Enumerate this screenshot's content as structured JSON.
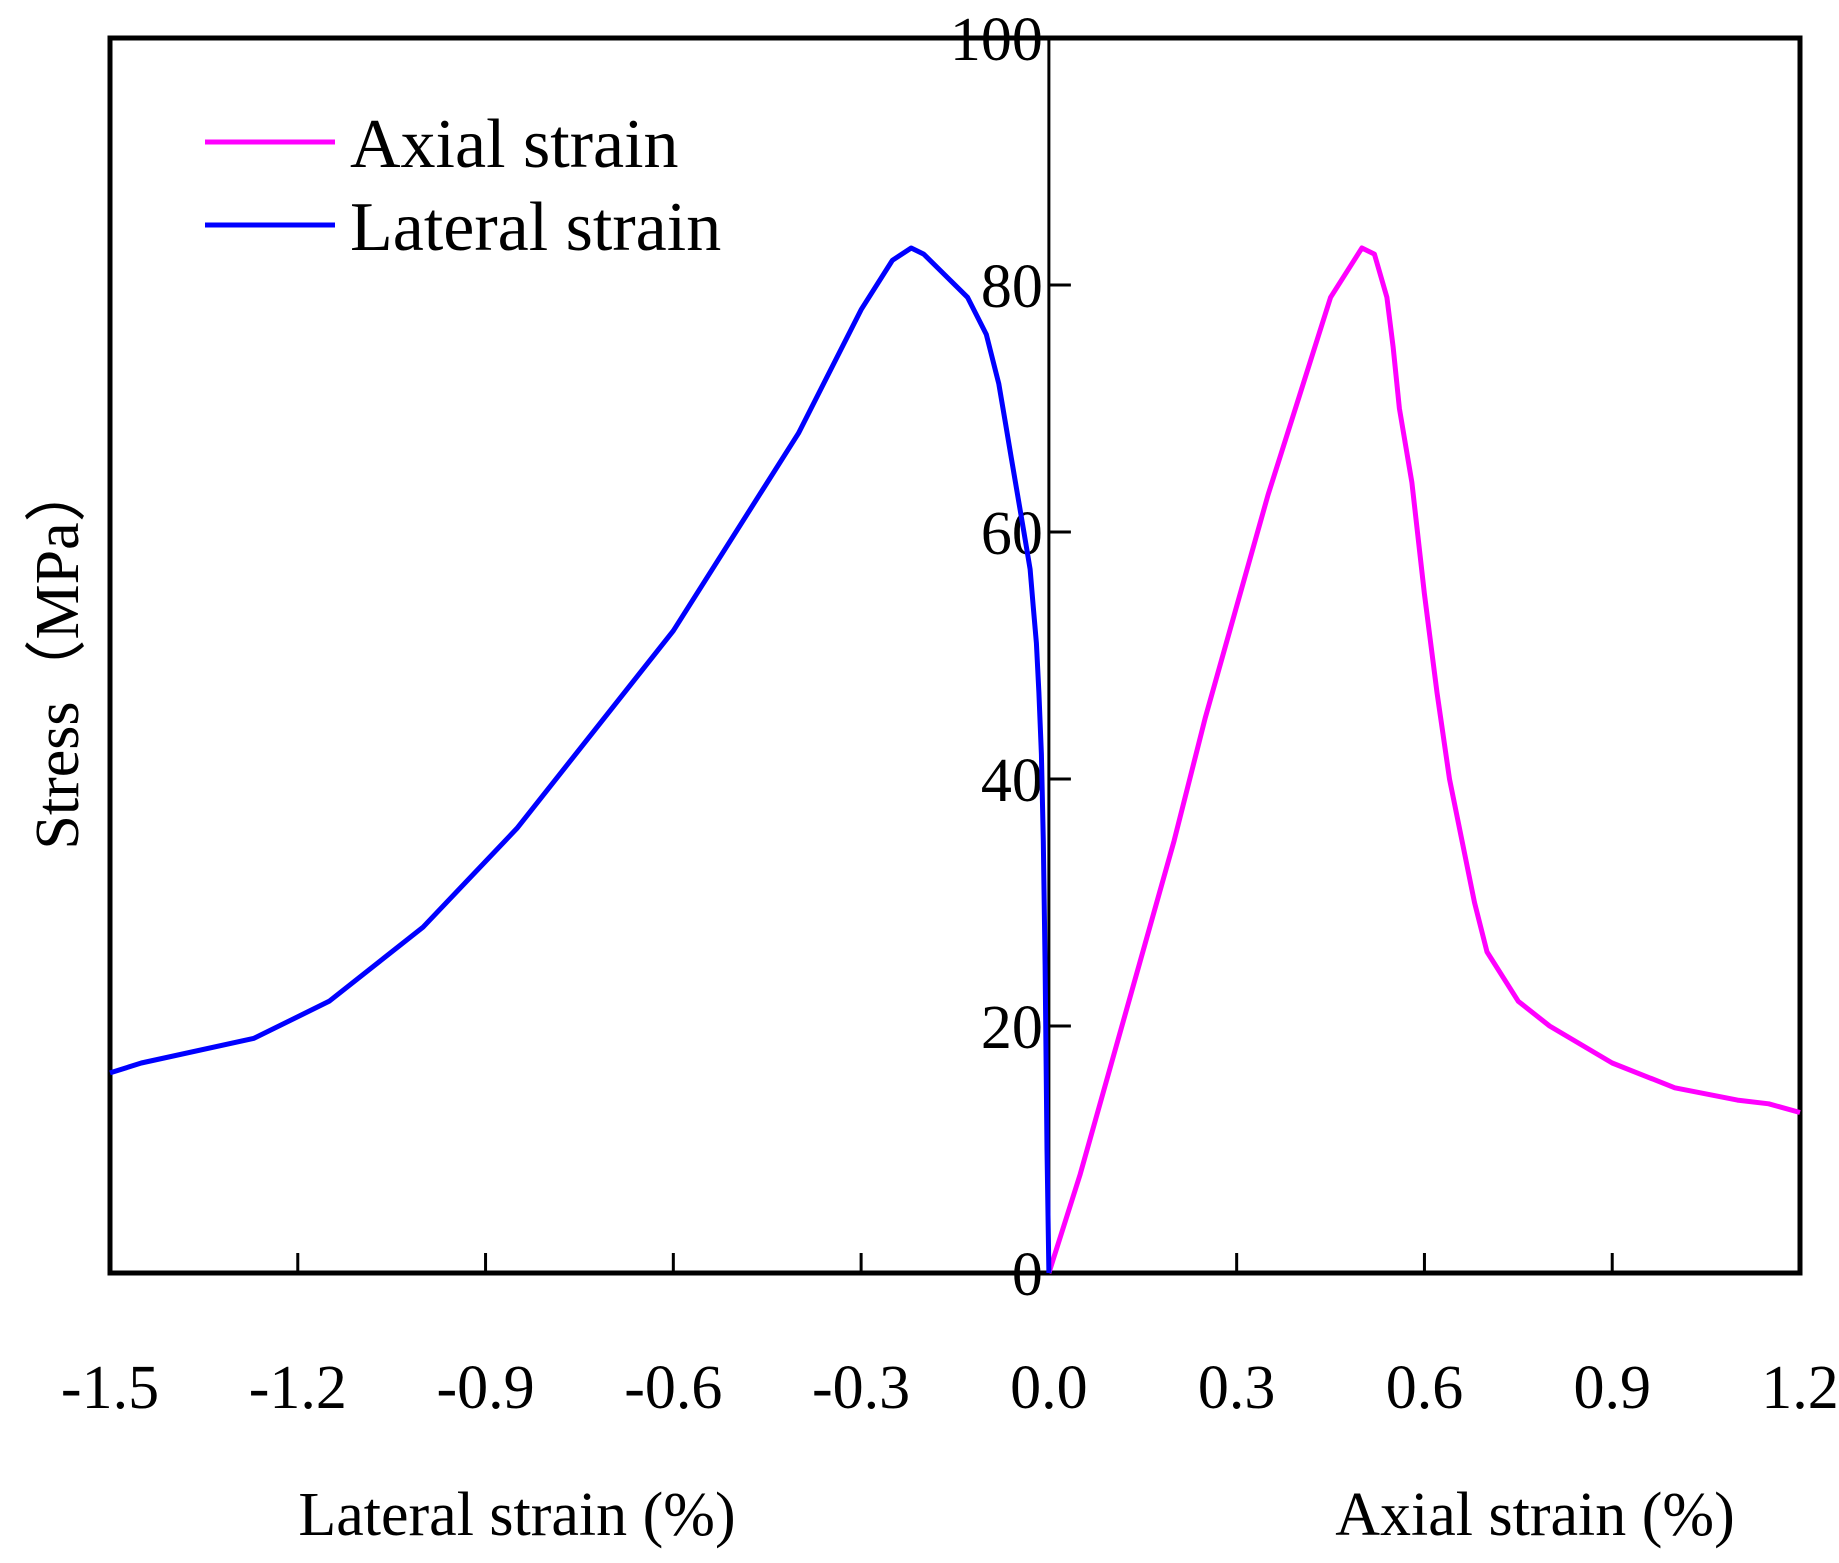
{
  "chart_data": {
    "type": "line",
    "title": "",
    "xlabel_left": "Lateral strain (%)",
    "xlabel_right": "Axial strain (%)",
    "ylabel": "Stress（MPa）",
    "xlim": [
      -1.5,
      1.2
    ],
    "ylim": [
      0,
      100
    ],
    "x_ticks": [
      "-1.5",
      "-1.2",
      "-0.9",
      "-0.6",
      "-0.3",
      "0.0",
      "0.3",
      "0.6",
      "0.9",
      "1.2"
    ],
    "x_tick_values": [
      -1.5,
      -1.2,
      -0.9,
      -0.6,
      -0.3,
      0.0,
      0.3,
      0.6,
      0.9,
      1.2
    ],
    "y_ticks": [
      "0",
      "20",
      "40",
      "60",
      "80",
      "100"
    ],
    "y_tick_values": [
      0,
      20,
      40,
      60,
      80,
      100
    ],
    "grid": false,
    "legend_position": "top-left",
    "series": [
      {
        "name": "Axial strain",
        "color": "#ff00ff",
        "x": [
          0.0,
          0.05,
          0.1,
          0.15,
          0.2,
          0.25,
          0.3,
          0.35,
          0.4,
          0.45,
          0.5,
          0.52,
          0.54,
          0.55,
          0.56,
          0.58,
          0.6,
          0.62,
          0.64,
          0.66,
          0.68,
          0.7,
          0.75,
          0.8,
          0.9,
          0.95,
          1.0,
          1.05,
          1.1,
          1.15,
          1.2
        ],
        "y": [
          0,
          8,
          17,
          26,
          35,
          45,
          54,
          63,
          71,
          79,
          83,
          82.5,
          79,
          75,
          70,
          64,
          55,
          47,
          40,
          35,
          30,
          26,
          22,
          20,
          17,
          16,
          15,
          14.5,
          14,
          13.7,
          13
        ]
      },
      {
        "name": "Lateral strain",
        "color": "#0000ff",
        "x": [
          0.0,
          -0.003,
          -0.006,
          -0.009,
          -0.012,
          -0.016,
          -0.02,
          -0.025,
          -0.03,
          -0.04,
          -0.05,
          -0.06,
          -0.07,
          -0.08,
          -0.1,
          -0.13,
          -0.17,
          -0.2,
          -0.22,
          -0.25,
          -0.3,
          -0.4,
          -0.45,
          -0.6,
          -0.85,
          -1.0,
          -1.15,
          -1.27,
          -1.45,
          -1.5
        ],
        "y": [
          0,
          10,
          25,
          35,
          42,
          47,
          51,
          54,
          57,
          60,
          63,
          66,
          69,
          72,
          76,
          79,
          81,
          82.5,
          83,
          82,
          78,
          68,
          64,
          52,
          36,
          28,
          22,
          19,
          17,
          16.2
        ]
      }
    ]
  }
}
